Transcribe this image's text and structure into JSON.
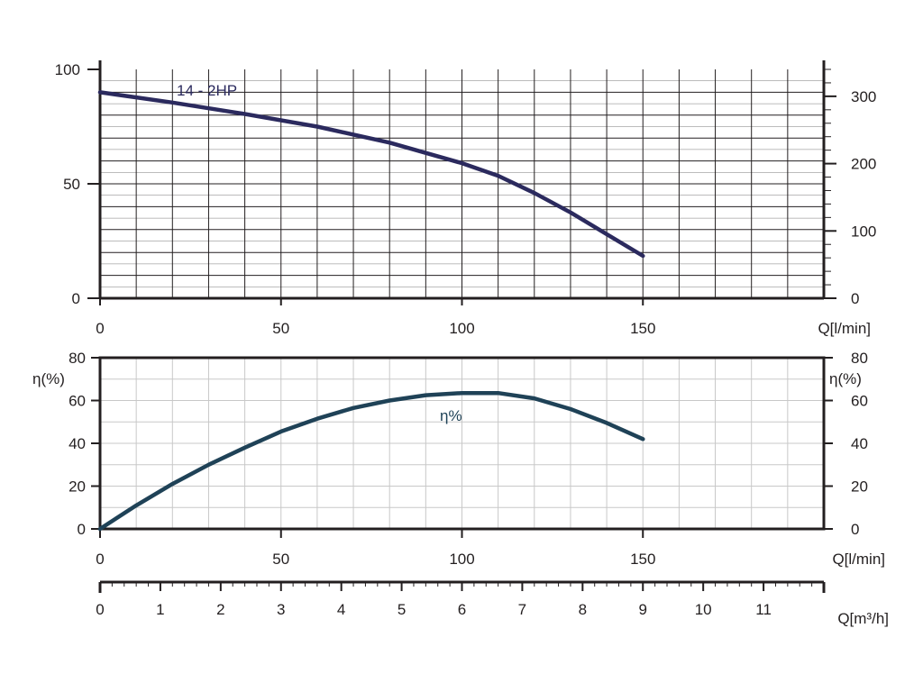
{
  "colors": {
    "background": "#ffffff",
    "axis": "#231f20",
    "grid_head": "#231f20",
    "grid_eff": "#c8c8c8",
    "head_curve": "#2b2a5e",
    "eff_curve": "#1f4257"
  },
  "chart_data": [
    {
      "type": "line",
      "name": "head-chart",
      "xlim": [
        0,
        200
      ],
      "ylim": [
        0,
        100
      ],
      "y2lim": [
        0,
        340
      ],
      "x_ticks": [
        0,
        50,
        100,
        150
      ],
      "y_ticks": [
        0,
        50,
        100
      ],
      "y2_ticks": [
        0,
        100,
        200,
        300
      ],
      "xlabel": "Q[l/min]",
      "grid": true,
      "series": [
        {
          "name": "14 - 2HP",
          "x": [
            0,
            20,
            40,
            60,
            80,
            100,
            110,
            120,
            130,
            140,
            150
          ],
          "y": [
            90,
            85.5,
            80.5,
            75,
            68,
            59,
            53.5,
            46,
            37.5,
            28,
            18.5
          ]
        }
      ]
    },
    {
      "type": "line",
      "name": "efficiency-chart",
      "xlim": [
        0,
        200
      ],
      "ylim": [
        0,
        80
      ],
      "x_ticks": [
        0,
        50,
        100,
        150
      ],
      "y_ticks": [
        0,
        20,
        40,
        60,
        80
      ],
      "ylabel": "η(%)",
      "y2label": "η(%)",
      "xlabel": "Q[l/min]",
      "grid": true,
      "series": [
        {
          "name": "η%",
          "x": [
            0,
            10,
            20,
            30,
            40,
            50,
            60,
            70,
            80,
            90,
            100,
            110,
            120,
            130,
            140,
            150
          ],
          "y": [
            0,
            11,
            21,
            30,
            38,
            45.5,
            51.5,
            56.5,
            60,
            62.5,
            63.5,
            63.5,
            61,
            56,
            49.5,
            42
          ]
        }
      ]
    },
    {
      "type": "axis",
      "name": "flow-m3h-axis",
      "xlim": [
        0,
        12
      ],
      "x_ticks": [
        0,
        1,
        2,
        3,
        4,
        5,
        6,
        7,
        8,
        9,
        10,
        11
      ],
      "xlabel": "Q[m³/h]"
    }
  ]
}
